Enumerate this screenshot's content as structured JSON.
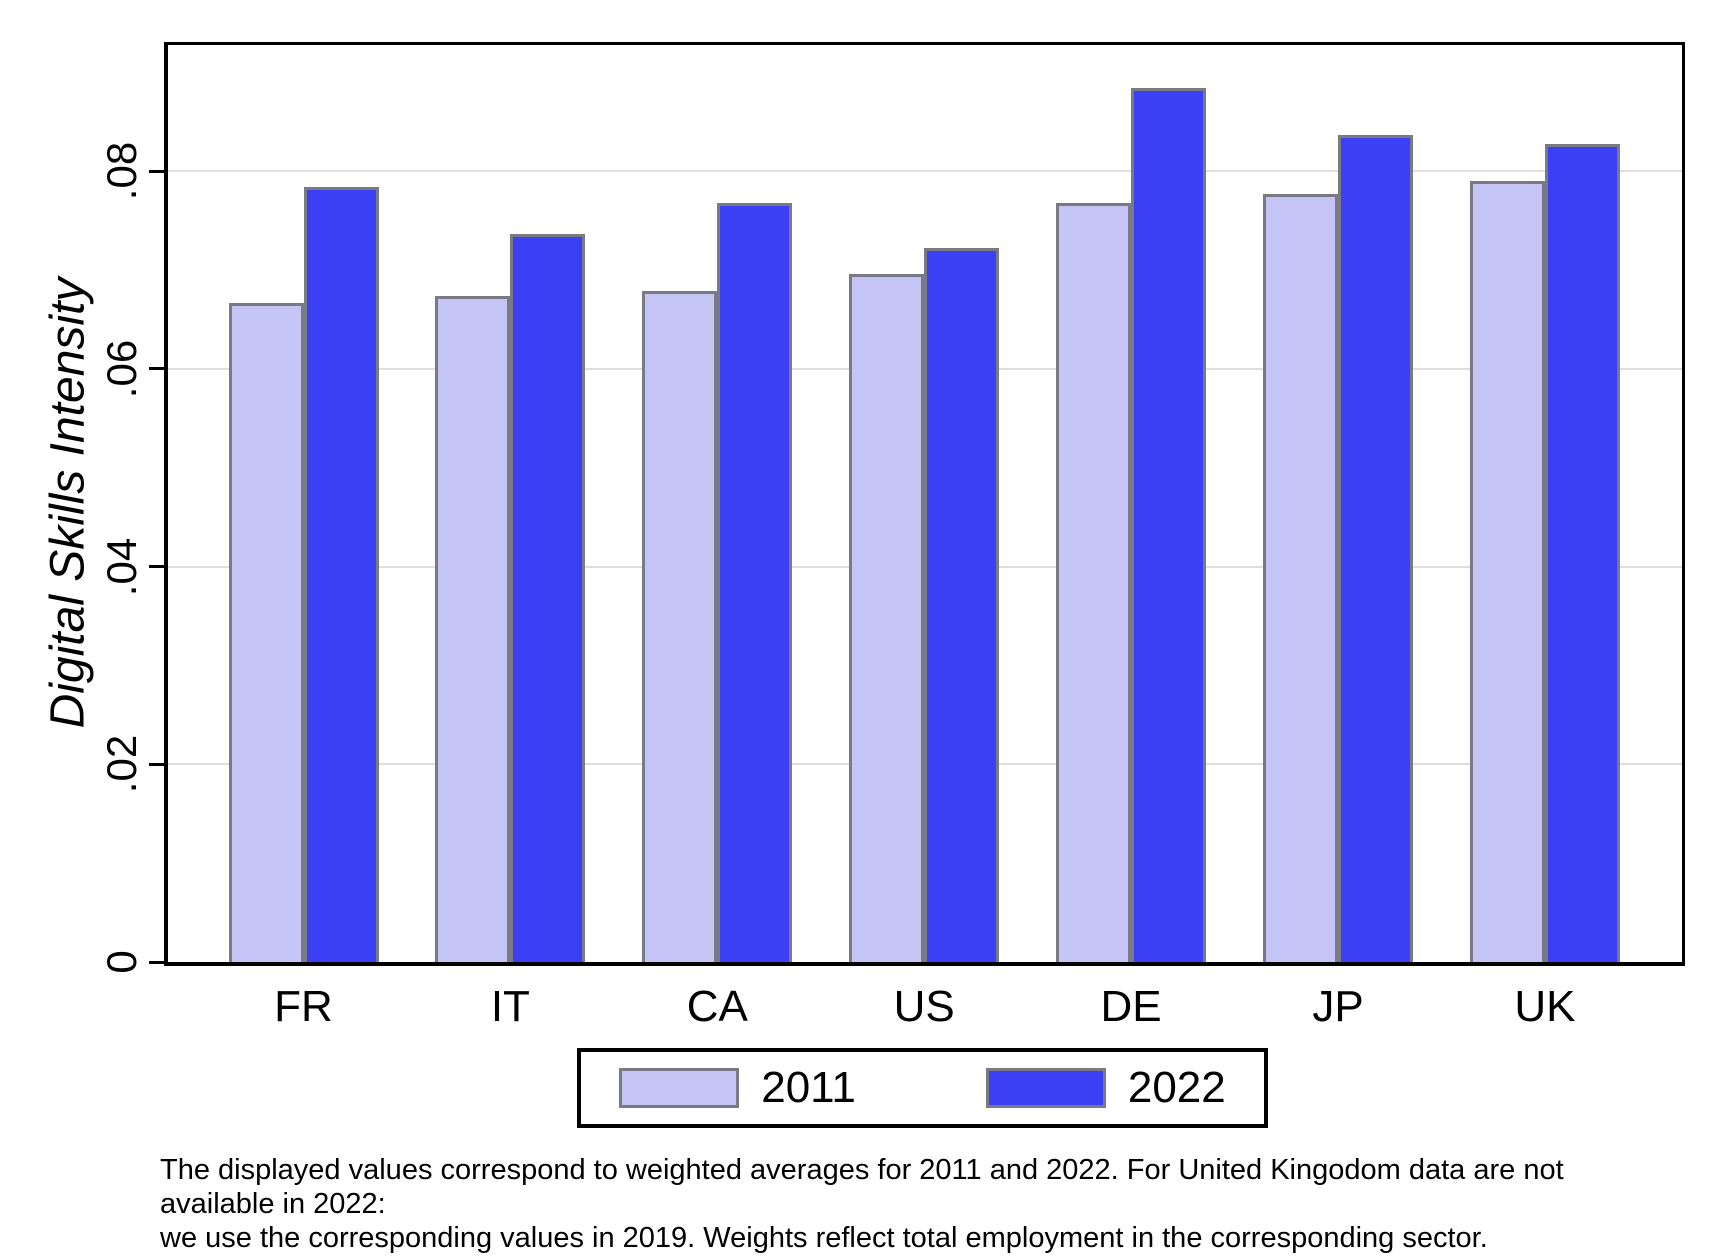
{
  "chart_data": {
    "type": "bar",
    "title": "",
    "xlabel": "",
    "ylabel": "Digital Skills Intensity",
    "categories": [
      "FR",
      "IT",
      "CA",
      "US",
      "DE",
      "JP",
      "UK"
    ],
    "series": [
      {
        "name": "2011",
        "color": "#c5c5f5",
        "values": [
          0.0667,
          0.0674,
          0.0679,
          0.0696,
          0.0768,
          0.0777,
          0.079
        ]
      },
      {
        "name": "2022",
        "color": "#3c40f5",
        "values": [
          0.0784,
          0.0736,
          0.0768,
          0.0722,
          0.0884,
          0.0836,
          0.0827
        ]
      }
    ],
    "ylim": [
      0,
      0.0927
    ],
    "yticks": [
      {
        "value": 0,
        "label": "0"
      },
      {
        "value": 0.02,
        "label": ".02"
      },
      {
        "value": 0.04,
        "label": ".04"
      },
      {
        "value": 0.06,
        "label": ".06"
      },
      {
        "value": 0.08,
        "label": ".08"
      }
    ],
    "grid": true,
    "legend_position": "bottom",
    "colors": {
      "bar_border": "#7a7a85",
      "gridline": "#dedede",
      "axis": "#000000",
      "background": "#ffffff"
    },
    "note_lines": [
      "The displayed values correspond to weighted averages for 2011 and 2022. For United Kingodom data are not available in 2022:",
      "we use the corresponding values in 2019. Weights reflect total employment in the corresponding sector."
    ]
  }
}
